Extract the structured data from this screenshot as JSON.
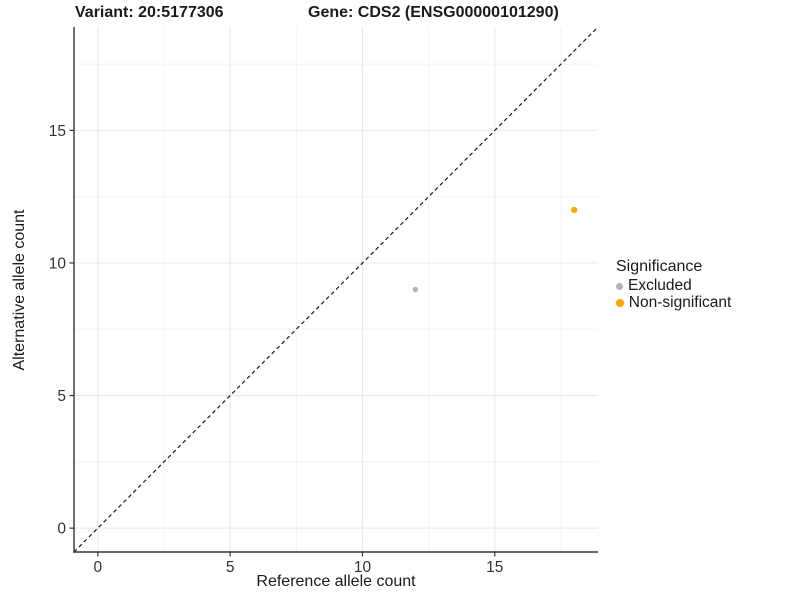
{
  "chart_data": {
    "type": "scatter",
    "titles": {
      "variant": "Variant: 20:5177306",
      "gene": "Gene: CDS2 (ENSG00000101290)"
    },
    "xlabel": "Reference allele count",
    "ylabel": "Alternative allele count",
    "xlim": [
      -0.9,
      18.9
    ],
    "ylim": [
      -0.9,
      18.9
    ],
    "x_ticks": [
      0,
      5,
      10,
      15
    ],
    "y_ticks": [
      0,
      5,
      10,
      15
    ],
    "x_minor_ticks": [
      2.5,
      7.5,
      12.5,
      17.5
    ],
    "y_minor_ticks": [
      2.5,
      7.5,
      12.5,
      17.5
    ],
    "grid": {
      "major_color": "#e8e8e8",
      "minor_color": "#f3f3f3"
    },
    "axis_color": "#333333",
    "identity_line": {
      "style": "dashed",
      "x1": -0.9,
      "y1": -0.9,
      "x2": 18.9,
      "y2": 18.9,
      "color": "#1a1a1a"
    },
    "legend": {
      "title": "Significance",
      "position": "right"
    },
    "series": [
      {
        "name": "Excluded",
        "color": "#b3b3b3",
        "point_radius": 2.7,
        "points": [
          {
            "x": 12,
            "y": 9
          }
        ]
      },
      {
        "name": "Non-significant",
        "color": "#ffa500",
        "point_radius": 3.1,
        "points": [
          {
            "x": 18,
            "y": 12
          }
        ]
      }
    ]
  }
}
